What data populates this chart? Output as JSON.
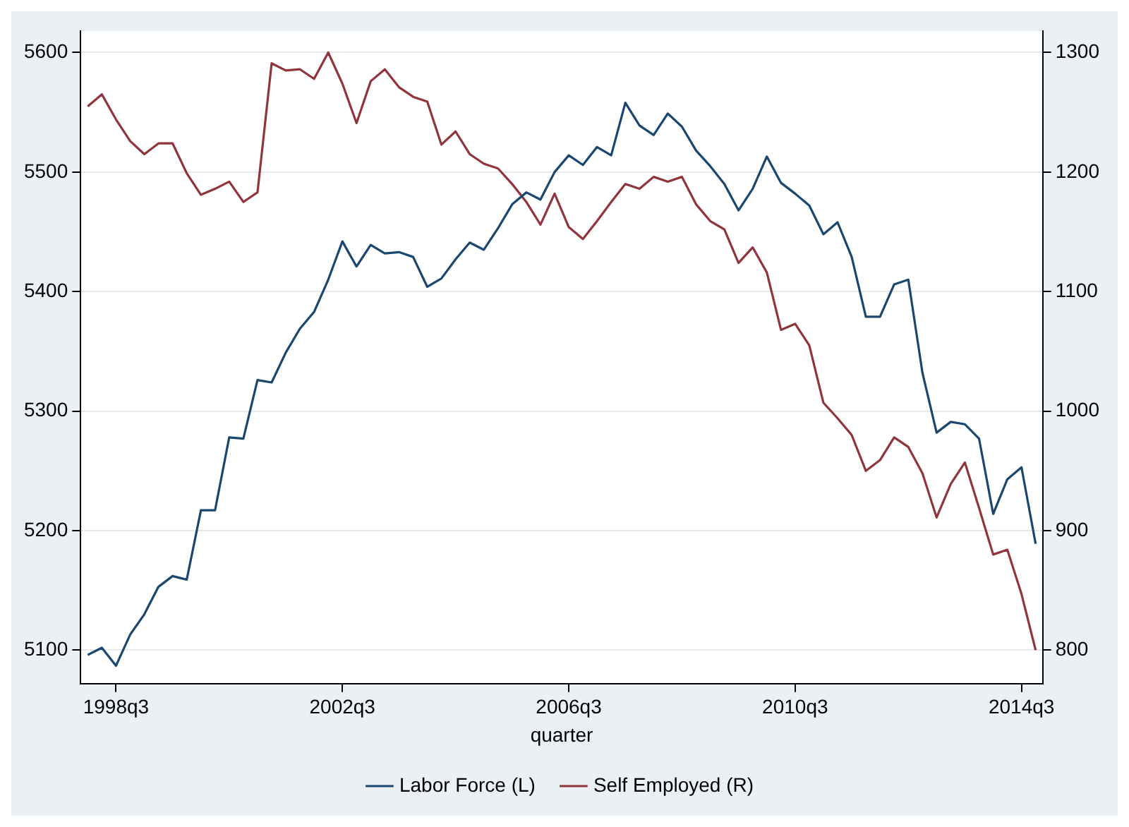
{
  "chart_data": {
    "type": "line",
    "xlabel": "quarter",
    "categories": [
      null,
      null,
      "1998q3",
      null,
      null,
      null,
      null,
      null,
      null,
      null,
      null,
      null,
      null,
      null,
      null,
      null,
      null,
      null,
      "2002q3",
      null,
      null,
      null,
      null,
      null,
      null,
      null,
      null,
      null,
      null,
      null,
      null,
      null,
      null,
      null,
      "2006q3",
      null,
      null,
      null,
      null,
      null,
      null,
      null,
      null,
      null,
      null,
      null,
      null,
      null,
      null,
      null,
      "2010q3",
      null,
      null,
      null,
      null,
      null,
      null,
      null,
      null,
      null,
      null,
      null,
      null,
      null,
      null,
      null,
      "2014q3",
      null
    ],
    "series": [
      {
        "name": "Labor Force (L)",
        "color": "#1a476f",
        "axis": "y",
        "values": [
          5096,
          5102,
          5087,
          5113,
          5130,
          5153,
          5162,
          5159,
          5217,
          5217,
          5278,
          5277,
          5326,
          5324,
          5349,
          5369,
          5383,
          5410,
          5442,
          5421,
          5439,
          5432,
          5433,
          5429,
          5404,
          5411,
          5427,
          5441,
          5435,
          5453,
          5473,
          5483,
          5477,
          5500,
          5514,
          5506,
          5521,
          5514,
          5558,
          5539,
          5531,
          5549,
          5538,
          5518,
          5505,
          5490,
          5468,
          5486,
          5513,
          5491,
          5482,
          5472,
          5448,
          5458,
          5429,
          5379,
          5379,
          5406,
          5410,
          5332,
          5282,
          5291,
          5289,
          5277,
          5214,
          5243,
          5253,
          5189
        ]
      },
      {
        "name": "Self Employed (R)",
        "color": "#90353b",
        "axis": "y2",
        "values": [
          1255,
          1265,
          1244,
          1226,
          1215,
          1224,
          1224,
          1199,
          1181,
          1186,
          1192,
          1175,
          1183,
          1291,
          1285,
          1286,
          1278,
          1300,
          1274,
          1241,
          1276,
          1286,
          1271,
          1263,
          1259,
          1223,
          1234,
          1215,
          1207,
          1203,
          1190,
          1175,
          1156,
          1182,
          1154,
          1144,
          1159,
          1175,
          1190,
          1186,
          1196,
          1192,
          1196,
          1173,
          1159,
          1152,
          1124,
          1137,
          1116,
          1068,
          1073,
          1055,
          1007,
          994,
          980,
          950,
          959,
          978,
          970,
          948,
          911,
          939,
          957,
          919,
          880,
          884,
          847,
          800
        ]
      }
    ],
    "ylim": [
      5072,
      5618
    ],
    "yticks": [
      5100,
      5200,
      5300,
      5400,
      5500,
      5600
    ],
    "y2lim": [
      772,
      1318
    ],
    "y2ticks": [
      800,
      900,
      1000,
      1100,
      1200,
      1300
    ],
    "grid": "y",
    "legend": "bottom",
    "marker": "none",
    "line_style": "solid"
  }
}
